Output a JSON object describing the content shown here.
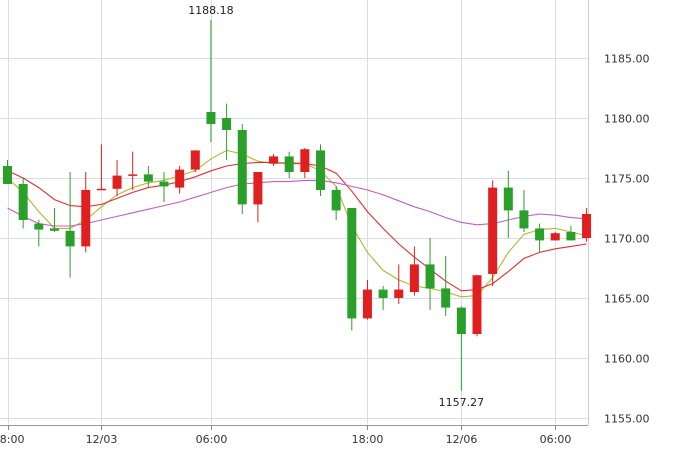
{
  "chart_data": {
    "type": "candlestick",
    "title": "",
    "xlabel": "",
    "ylabel": "",
    "ylim": [
      1155,
      1190
    ],
    "y_ticks": [
      1155,
      1160,
      1165,
      1170,
      1175,
      1180,
      1185
    ],
    "y_tick_labels": [
      "1155.00",
      "1160.00",
      "1165.00",
      "1170.00",
      "1175.00",
      "1180.00",
      "1185.00"
    ],
    "x_tick_labels": [
      {
        "label": "8:00",
        "index": 0
      },
      {
        "label": "12/03",
        "index": 6
      },
      {
        "label": "06:00",
        "index": 13
      },
      {
        "label": "18:00",
        "index": 23
      },
      {
        "label": "12/06",
        "index": 29
      },
      {
        "label": "06:00",
        "index": 35
      }
    ],
    "grid": true,
    "up_color": "#e02020",
    "down_color": "#2aa02a",
    "annotations": [
      {
        "text": "1188.18",
        "index": 13,
        "value": 1188.18,
        "position": "above"
      },
      {
        "text": "1157.27",
        "index": 29,
        "value": 1157.27,
        "position": "below"
      }
    ],
    "candles": [
      {
        "open": 1176.0,
        "high": 1176.5,
        "low": 1174.5,
        "close": 1174.5
      },
      {
        "open": 1174.5,
        "high": 1175.0,
        "low": 1170.8,
        "close": 1171.5
      },
      {
        "open": 1171.2,
        "high": 1171.5,
        "low": 1169.3,
        "close": 1170.7
      },
      {
        "open": 1170.8,
        "high": 1172.5,
        "low": 1170.5,
        "close": 1170.6
      },
      {
        "open": 1170.6,
        "high": 1175.5,
        "low": 1166.7,
        "close": 1169.3
      },
      {
        "open": 1169.3,
        "high": 1175.5,
        "low": 1168.8,
        "close": 1174.0
      },
      {
        "open": 1174.0,
        "high": 1177.8,
        "low": 1174.0,
        "close": 1174.1
      },
      {
        "open": 1174.1,
        "high": 1176.5,
        "low": 1173.5,
        "close": 1175.2
      },
      {
        "open": 1175.2,
        "high": 1177.2,
        "low": 1174.0,
        "close": 1175.3
      },
      {
        "open": 1175.3,
        "high": 1176.0,
        "low": 1174.2,
        "close": 1174.7
      },
      {
        "open": 1174.7,
        "high": 1175.5,
        "low": 1173.0,
        "close": 1174.3
      },
      {
        "open": 1174.2,
        "high": 1176.0,
        "low": 1173.7,
        "close": 1175.7
      },
      {
        "open": 1175.7,
        "high": 1177.3,
        "low": 1175.5,
        "close": 1177.3
      },
      {
        "open": 1180.5,
        "high": 1188.18,
        "low": 1178.0,
        "close": 1179.5
      },
      {
        "open": 1180.0,
        "high": 1181.2,
        "low": 1176.5,
        "close": 1179.0
      },
      {
        "open": 1179.0,
        "high": 1179.5,
        "low": 1172.0,
        "close": 1172.8
      },
      {
        "open": 1172.8,
        "high": 1175.5,
        "low": 1171.3,
        "close": 1175.5
      },
      {
        "open": 1176.2,
        "high": 1177.0,
        "low": 1176.0,
        "close": 1176.8
      },
      {
        "open": 1176.8,
        "high": 1177.2,
        "low": 1175.0,
        "close": 1175.5
      },
      {
        "open": 1175.5,
        "high": 1177.5,
        "low": 1175.0,
        "close": 1177.4
      },
      {
        "open": 1177.3,
        "high": 1177.8,
        "low": 1173.5,
        "close": 1174.0
      },
      {
        "open": 1174.0,
        "high": 1174.3,
        "low": 1171.5,
        "close": 1172.3
      },
      {
        "open": 1172.5,
        "high": 1172.5,
        "low": 1162.3,
        "close": 1163.3
      },
      {
        "open": 1163.3,
        "high": 1166.5,
        "low": 1163.2,
        "close": 1165.7
      },
      {
        "open": 1165.7,
        "high": 1166.0,
        "low": 1164.0,
        "close": 1165.0
      },
      {
        "open": 1165.0,
        "high": 1167.8,
        "low": 1164.5,
        "close": 1165.7
      },
      {
        "open": 1165.5,
        "high": 1169.3,
        "low": 1165.2,
        "close": 1167.8
      },
      {
        "open": 1167.8,
        "high": 1170.0,
        "low": 1164.0,
        "close": 1165.8
      },
      {
        "open": 1165.8,
        "high": 1168.5,
        "low": 1163.5,
        "close": 1164.2
      },
      {
        "open": 1164.2,
        "high": 1164.3,
        "low": 1157.27,
        "close": 1162.0
      },
      {
        "open": 1162.0,
        "high": 1166.9,
        "low": 1161.8,
        "close": 1166.9
      },
      {
        "open": 1167.0,
        "high": 1174.8,
        "low": 1166.0,
        "close": 1174.2
      },
      {
        "open": 1174.2,
        "high": 1175.6,
        "low": 1170.0,
        "close": 1172.3
      },
      {
        "open": 1172.3,
        "high": 1174.0,
        "low": 1170.5,
        "close": 1170.8
      },
      {
        "open": 1170.8,
        "high": 1171.2,
        "low": 1168.8,
        "close": 1169.8
      },
      {
        "open": 1169.8,
        "high": 1170.5,
        "low": 1169.8,
        "close": 1170.4
      },
      {
        "open": 1170.5,
        "high": 1171.0,
        "low": 1169.8,
        "close": 1169.8
      },
      {
        "open": 1170.0,
        "high": 1172.5,
        "low": 1169.7,
        "close": 1172.0
      }
    ],
    "series": [
      {
        "color": "#b0b830",
        "values": [
          1175.0,
          1173.8,
          1172.2,
          1170.8,
          1170.8,
          1171.5,
          1172.6,
          1173.6,
          1174.2,
          1174.6,
          1174.8,
          1175.2,
          1175.6,
          1176.6,
          1177.3,
          1177.0,
          1176.4,
          1176.2,
          1176.3,
          1176.2,
          1175.6,
          1174.3,
          1171.0,
          1168.8,
          1167.3,
          1166.5,
          1166.0,
          1165.8,
          1165.5,
          1165.1,
          1165.2,
          1166.7,
          1168.8,
          1170.3,
          1170.7,
          1170.8,
          1170.5,
          1170.2
        ]
      },
      {
        "color": "#e03030",
        "values": [
          1175.6,
          1175.0,
          1174.2,
          1173.2,
          1172.7,
          1172.6,
          1172.8,
          1173.3,
          1173.8,
          1174.2,
          1174.4,
          1174.7,
          1175.1,
          1175.6,
          1176.0,
          1176.2,
          1176.3,
          1176.3,
          1176.2,
          1176.2,
          1176.0,
          1175.4,
          1173.9,
          1172.2,
          1170.8,
          1169.5,
          1168.4,
          1167.4,
          1166.4,
          1165.6,
          1165.7,
          1166.2,
          1167.2,
          1168.3,
          1168.8,
          1169.1,
          1169.3,
          1169.5
        ]
      },
      {
        "color": "#c060c0",
        "values": [
          1172.5,
          1171.8,
          1171.2,
          1171.0,
          1171.0,
          1171.2,
          1171.5,
          1171.8,
          1172.1,
          1172.4,
          1172.7,
          1173.0,
          1173.4,
          1173.8,
          1174.2,
          1174.5,
          1174.6,
          1174.7,
          1174.7,
          1174.8,
          1174.8,
          1174.6,
          1174.3,
          1174.0,
          1173.6,
          1173.1,
          1172.6,
          1172.2,
          1171.7,
          1171.3,
          1171.1,
          1171.2,
          1171.5,
          1171.8,
          1172.0,
          1171.9,
          1171.7,
          1171.6
        ]
      }
    ]
  }
}
